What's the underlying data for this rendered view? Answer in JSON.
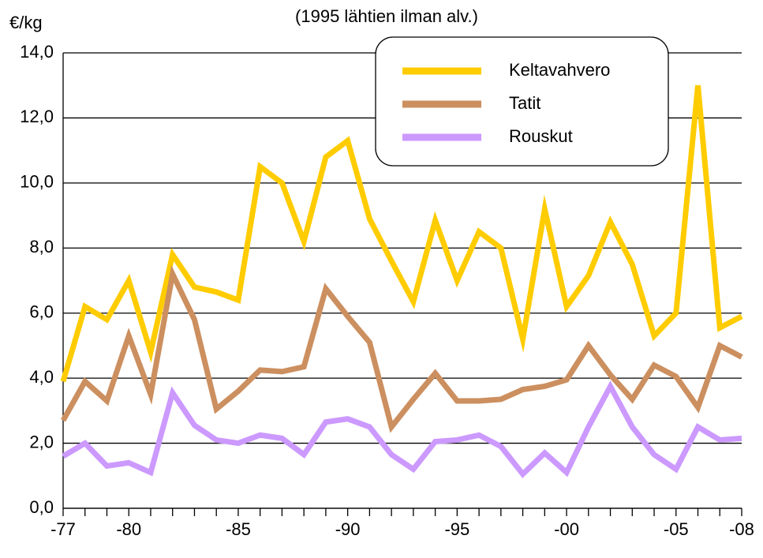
{
  "chart_data": {
    "type": "line",
    "title": "(1995 lähtien ilman alv.)",
    "y_label": "€/kg",
    "categories": [
      "-77",
      null,
      null,
      "-80",
      null,
      null,
      null,
      null,
      "-85",
      null,
      null,
      null,
      null,
      "-90",
      null,
      null,
      null,
      null,
      "-95",
      null,
      null,
      null,
      null,
      "-00",
      null,
      null,
      null,
      null,
      "-05",
      null,
      null,
      "-08"
    ],
    "series": [
      {
        "name": "Keltavahvero",
        "color": "#ffcc00",
        "values": [
          3.9,
          6.2,
          5.8,
          7.0,
          4.8,
          7.8,
          6.8,
          6.65,
          6.4,
          10.5,
          10.0,
          8.2,
          10.8,
          11.3,
          8.9,
          7.6,
          6.35,
          8.85,
          7.0,
          8.5,
          8.0,
          5.2,
          9.2,
          6.2,
          7.15,
          8.8,
          7.5,
          5.3,
          6.0,
          13.0,
          5.55,
          5.9
        ]
      },
      {
        "name": "Tatit",
        "color": "#cc8f5f",
        "values": [
          2.7,
          3.9,
          3.3,
          5.3,
          3.5,
          7.2,
          5.8,
          3.05,
          3.6,
          4.25,
          4.2,
          4.35,
          6.75,
          5.9,
          5.1,
          2.5,
          3.35,
          4.15,
          3.3,
          3.3,
          3.35,
          3.65,
          3.75,
          3.95,
          5.0,
          4.1,
          3.35,
          4.4,
          4.05,
          3.1,
          5.0,
          4.65
        ]
      },
      {
        "name": "Rouskut",
        "color": "#cc99ff",
        "values": [
          1.6,
          2.0,
          1.3,
          1.4,
          1.1,
          3.55,
          2.55,
          2.1,
          2.0,
          2.25,
          2.15,
          1.65,
          2.65,
          2.75,
          2.5,
          1.65,
          1.2,
          2.05,
          2.1,
          2.25,
          1.9,
          1.05,
          1.7,
          1.1,
          2.5,
          3.75,
          2.5,
          1.65,
          1.2,
          2.5,
          2.1,
          2.15
        ]
      }
    ],
    "ylim": [
      0,
      14
    ],
    "yticks": [
      {
        "value": 0,
        "label": "0,0"
      },
      {
        "value": 2,
        "label": "2,0"
      },
      {
        "value": 4,
        "label": "4,0"
      },
      {
        "value": 6,
        "label": "6,0"
      },
      {
        "value": 8,
        "label": "8,0"
      },
      {
        "value": 10,
        "label": "10,0"
      },
      {
        "value": 12,
        "label": "12,0"
      },
      {
        "value": 14,
        "label": "14,0"
      }
    ],
    "grid": true,
    "legend": "upper right"
  }
}
